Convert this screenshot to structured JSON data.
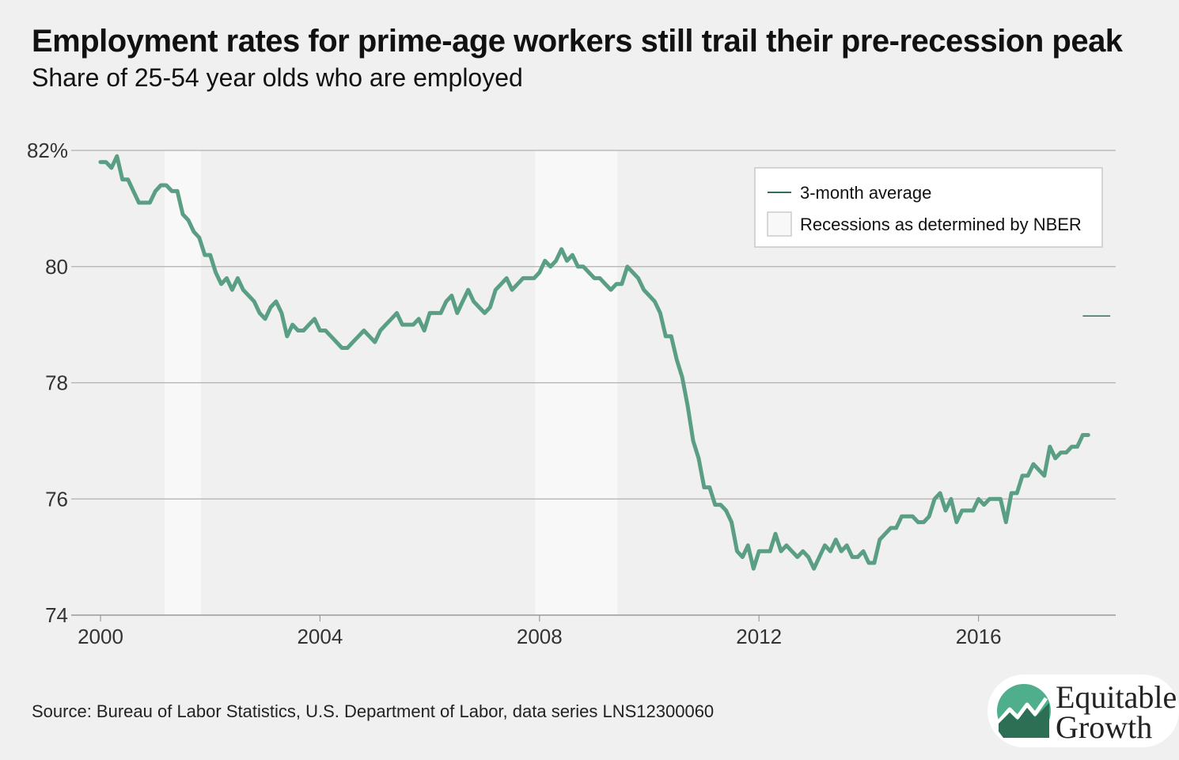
{
  "header": {
    "title": "Employment rates for prime-age workers still trail their pre-recession peak",
    "subtitle": "Share of 25-54 year olds who are employed"
  },
  "footer": {
    "source": "Source: Bureau of Labor Statistics, U.S. Department of Labor, data series LNS12300060"
  },
  "logo": {
    "line1": "Equitable",
    "line2": "Growth",
    "icon": "equitable-growth-logo-icon"
  },
  "legend": {
    "line_label": "3-month average",
    "recession_label": "Recessions as determined by NBER"
  },
  "colors": {
    "series": "#5a9e84",
    "legend_line": "#2f6e58",
    "recession": "#f8f8f8",
    "grid": "#b0b0b0",
    "background": "#f0f0f0"
  },
  "chart_data": {
    "type": "line",
    "title": "Employment rates for prime-age workers still trail their pre-recession peak",
    "subtitle": "Share of 25-54 year olds who are employed",
    "xlim": [
      2000,
      2018.5
    ],
    "ylim": [
      74,
      82
    ],
    "x_ticks": [
      {
        "value": 2000,
        "label": "2000"
      },
      {
        "value": 2004,
        "label": "2004"
      },
      {
        "value": 2008,
        "label": "2008"
      },
      {
        "value": 2012,
        "label": "2012"
      },
      {
        "value": 2016,
        "label": "2016"
      }
    ],
    "y_ticks": [
      {
        "value": 82,
        "label": "82%"
      },
      {
        "value": 80,
        "label": "80"
      },
      {
        "value": 78,
        "label": "78"
      },
      {
        "value": 76,
        "label": "76"
      },
      {
        "value": 74,
        "label": "74"
      }
    ],
    "grid": true,
    "legend_position": "top-right",
    "recessions": [
      {
        "start": 2001.17,
        "end": 2001.83
      },
      {
        "start": 2007.92,
        "end": 2009.42
      }
    ],
    "reference_line": {
      "y": 79.15,
      "x_start": 2017.9,
      "x_end": 2018.4
    },
    "series": [
      {
        "name": "3-month average",
        "points": [
          [
            2000.0,
            81.8
          ],
          [
            2000.1,
            81.8
          ],
          [
            2000.2,
            81.7
          ],
          [
            2000.3,
            81.9
          ],
          [
            2000.4,
            81.5
          ],
          [
            2000.5,
            81.5
          ],
          [
            2000.6,
            81.3
          ],
          [
            2000.7,
            81.1
          ],
          [
            2000.8,
            81.1
          ],
          [
            2000.9,
            81.1
          ],
          [
            2001.0,
            81.3
          ],
          [
            2001.1,
            81.4
          ],
          [
            2001.2,
            81.4
          ],
          [
            2001.3,
            81.3
          ],
          [
            2001.4,
            81.3
          ],
          [
            2001.5,
            80.9
          ],
          [
            2001.6,
            80.8
          ],
          [
            2001.7,
            80.6
          ],
          [
            2001.8,
            80.5
          ],
          [
            2001.9,
            80.2
          ],
          [
            2002.0,
            80.2
          ],
          [
            2002.1,
            79.9
          ],
          [
            2002.2,
            79.7
          ],
          [
            2002.3,
            79.8
          ],
          [
            2002.4,
            79.6
          ],
          [
            2002.5,
            79.8
          ],
          [
            2002.6,
            79.6
          ],
          [
            2002.7,
            79.5
          ],
          [
            2002.8,
            79.4
          ],
          [
            2002.9,
            79.2
          ],
          [
            2003.0,
            79.1
          ],
          [
            2003.1,
            79.3
          ],
          [
            2003.2,
            79.4
          ],
          [
            2003.3,
            79.2
          ],
          [
            2003.4,
            78.8
          ],
          [
            2003.5,
            79.0
          ],
          [
            2003.6,
            78.9
          ],
          [
            2003.7,
            78.9
          ],
          [
            2003.8,
            79.0
          ],
          [
            2003.9,
            79.1
          ],
          [
            2004.0,
            78.9
          ],
          [
            2004.1,
            78.9
          ],
          [
            2004.2,
            78.8
          ],
          [
            2004.3,
            78.7
          ],
          [
            2004.4,
            78.6
          ],
          [
            2004.5,
            78.6
          ],
          [
            2004.6,
            78.7
          ],
          [
            2004.7,
            78.8
          ],
          [
            2004.8,
            78.9
          ],
          [
            2004.9,
            78.8
          ],
          [
            2005.0,
            78.7
          ],
          [
            2005.1,
            78.9
          ],
          [
            2005.2,
            79.0
          ],
          [
            2005.3,
            79.1
          ],
          [
            2005.4,
            79.2
          ],
          [
            2005.5,
            79.0
          ],
          [
            2005.6,
            79.0
          ],
          [
            2005.7,
            79.0
          ],
          [
            2005.8,
            79.1
          ],
          [
            2005.9,
            78.9
          ],
          [
            2006.0,
            79.2
          ],
          [
            2006.1,
            79.2
          ],
          [
            2006.2,
            79.2
          ],
          [
            2006.3,
            79.4
          ],
          [
            2006.4,
            79.5
          ],
          [
            2006.5,
            79.2
          ],
          [
            2006.6,
            79.4
          ],
          [
            2006.7,
            79.6
          ],
          [
            2006.8,
            79.4
          ],
          [
            2006.9,
            79.3
          ],
          [
            2007.0,
            79.2
          ],
          [
            2007.1,
            79.3
          ],
          [
            2007.2,
            79.6
          ],
          [
            2007.3,
            79.7
          ],
          [
            2007.4,
            79.8
          ],
          [
            2007.5,
            79.6
          ],
          [
            2007.6,
            79.7
          ],
          [
            2007.7,
            79.8
          ],
          [
            2007.8,
            79.8
          ],
          [
            2007.9,
            79.8
          ],
          [
            2008.0,
            79.9
          ],
          [
            2008.1,
            80.1
          ],
          [
            2008.2,
            80.0
          ],
          [
            2008.3,
            80.1
          ],
          [
            2008.4,
            80.3
          ],
          [
            2008.5,
            80.1
          ],
          [
            2008.6,
            80.2
          ],
          [
            2008.7,
            80.0
          ],
          [
            2008.8,
            80.0
          ],
          [
            2008.9,
            79.9
          ],
          [
            2009.0,
            79.8
          ],
          [
            2009.1,
            79.8
          ],
          [
            2009.2,
            79.7
          ],
          [
            2009.3,
            79.6
          ],
          [
            2009.4,
            79.7
          ],
          [
            2009.5,
            79.7
          ],
          [
            2009.6,
            80.0
          ],
          [
            2009.7,
            79.9
          ],
          [
            2009.8,
            79.8
          ],
          [
            2009.9,
            79.6
          ],
          [
            2010.0,
            79.5
          ],
          [
            2010.1,
            79.4
          ],
          [
            2010.2,
            79.2
          ],
          [
            2010.3,
            78.8
          ],
          [
            2010.4,
            78.8
          ],
          [
            2010.5,
            78.4
          ],
          [
            2010.6,
            78.1
          ],
          [
            2010.7,
            77.6
          ],
          [
            2010.8,
            77.0
          ],
          [
            2010.9,
            76.7
          ],
          [
            2011.0,
            76.2
          ],
          [
            2011.1,
            76.2
          ],
          [
            2011.2,
            75.9
          ],
          [
            2011.3,
            75.9
          ],
          [
            2011.4,
            75.8
          ],
          [
            2011.5,
            75.6
          ],
          [
            2011.6,
            75.1
          ],
          [
            2011.7,
            75.0
          ],
          [
            2011.8,
            75.2
          ],
          [
            2011.9,
            74.8
          ],
          [
            2012.0,
            75.1
          ],
          [
            2012.1,
            75.1
          ],
          [
            2012.2,
            75.1
          ],
          [
            2012.3,
            75.4
          ],
          [
            2012.4,
            75.1
          ],
          [
            2012.5,
            75.2
          ],
          [
            2012.6,
            75.1
          ],
          [
            2012.7,
            75.0
          ],
          [
            2012.8,
            75.1
          ],
          [
            2012.9,
            75.0
          ],
          [
            2013.0,
            74.8
          ],
          [
            2013.1,
            75.0
          ],
          [
            2013.2,
            75.2
          ],
          [
            2013.3,
            75.1
          ],
          [
            2013.4,
            75.3
          ],
          [
            2013.5,
            75.1
          ],
          [
            2013.6,
            75.2
          ],
          [
            2013.7,
            75.0
          ],
          [
            2013.8,
            75.0
          ],
          [
            2013.9,
            75.1
          ],
          [
            2014.0,
            74.9
          ],
          [
            2014.1,
            74.9
          ],
          [
            2014.2,
            75.3
          ],
          [
            2014.3,
            75.4
          ],
          [
            2014.4,
            75.5
          ],
          [
            2014.5,
            75.5
          ],
          [
            2014.6,
            75.7
          ],
          [
            2014.7,
            75.7
          ],
          [
            2014.8,
            75.7
          ],
          [
            2014.9,
            75.6
          ],
          [
            2015.0,
            75.6
          ],
          [
            2015.1,
            75.7
          ],
          [
            2015.2,
            76.0
          ],
          [
            2015.3,
            76.1
          ],
          [
            2015.4,
            75.8
          ],
          [
            2015.5,
            76.0
          ],
          [
            2015.6,
            75.6
          ],
          [
            2015.7,
            75.8
          ],
          [
            2015.8,
            75.8
          ],
          [
            2015.9,
            75.8
          ],
          [
            2016.0,
            76.0
          ],
          [
            2016.1,
            75.9
          ],
          [
            2016.2,
            76.0
          ],
          [
            2016.3,
            76.0
          ],
          [
            2016.4,
            76.0
          ],
          [
            2016.5,
            75.6
          ],
          [
            2016.6,
            76.1
          ],
          [
            2016.7,
            76.1
          ],
          [
            2016.8,
            76.4
          ],
          [
            2016.9,
            76.4
          ],
          [
            2017.0,
            76.6
          ],
          [
            2017.1,
            76.5
          ],
          [
            2017.2,
            76.4
          ],
          [
            2017.3,
            76.9
          ],
          [
            2017.4,
            76.7
          ],
          [
            2017.5,
            76.8
          ],
          [
            2017.6,
            76.8
          ],
          [
            2017.7,
            76.9
          ],
          [
            2017.8,
            76.9
          ],
          [
            2017.9,
            77.1
          ],
          [
            2018.0,
            77.1
          ]
        ]
      }
    ]
  }
}
